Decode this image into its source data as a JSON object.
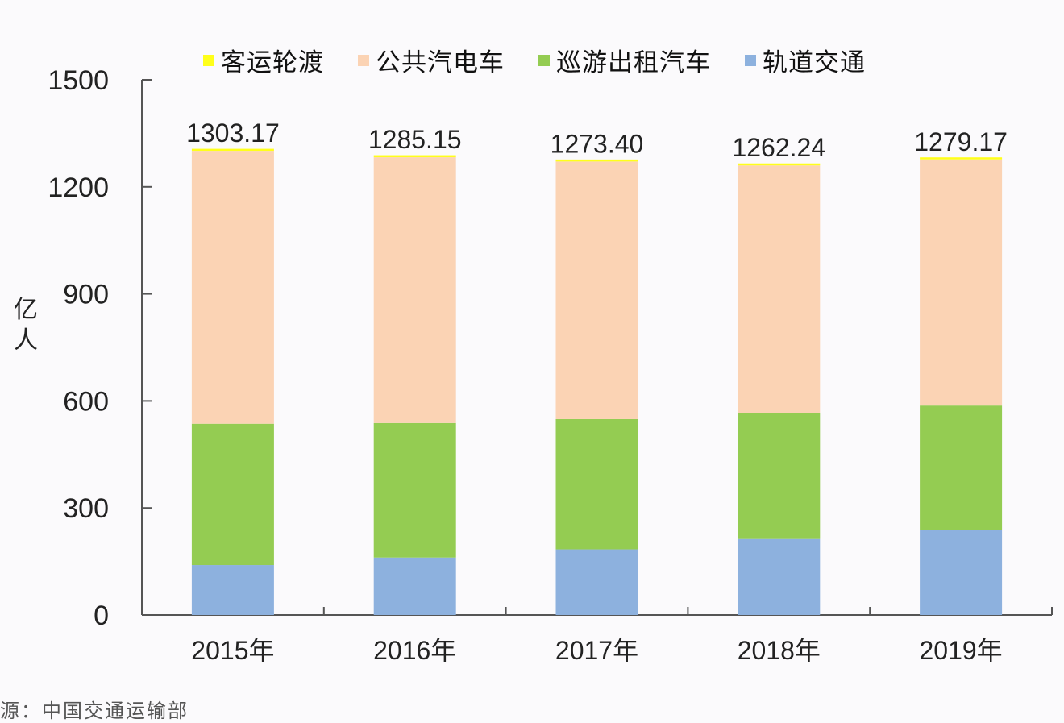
{
  "legend": [
    {
      "label": "客运轮渡",
      "color": "#ffff1a"
    },
    {
      "label": "公共汽电车",
      "color": "#fbd3b4"
    },
    {
      "label": "巡游出租汽车",
      "color": "#94cc52"
    },
    {
      "label": "轨道交通",
      "color": "#8db1de"
    }
  ],
  "ylabel": "亿人",
  "footer": "源：中国交通运输部",
  "chart_data": {
    "type": "bar",
    "stacked": true,
    "title": "",
    "xlabel": "",
    "ylabel": "亿人",
    "ylim": [
      0,
      1500
    ],
    "yticks": [
      0,
      300,
      600,
      900,
      1200,
      1500
    ],
    "grid": false,
    "legend_position": "top",
    "categories": [
      "2015年",
      "2016年",
      "2017年",
      "2018年",
      "2019年"
    ],
    "series": [
      {
        "name": "轨道交通",
        "color": "#8db1de",
        "values": [
          140,
          161,
          184,
          213,
          239
        ]
      },
      {
        "name": "巡游出租汽车",
        "color": "#94cc52",
        "values": [
          396,
          377,
          365,
          352,
          348
        ]
      },
      {
        "name": "公共汽电车",
        "color": "#fbd3b4",
        "values": [
          765,
          745,
          722,
          695,
          690
        ]
      },
      {
        "name": "客运轮渡",
        "color": "#ffff1a",
        "values": [
          2.17,
          2.15,
          2.4,
          2.24,
          2.17
        ]
      }
    ],
    "totals": [
      "1303.17",
      "1285.15",
      "1273.40",
      "1262.24",
      "1279.17"
    ]
  }
}
